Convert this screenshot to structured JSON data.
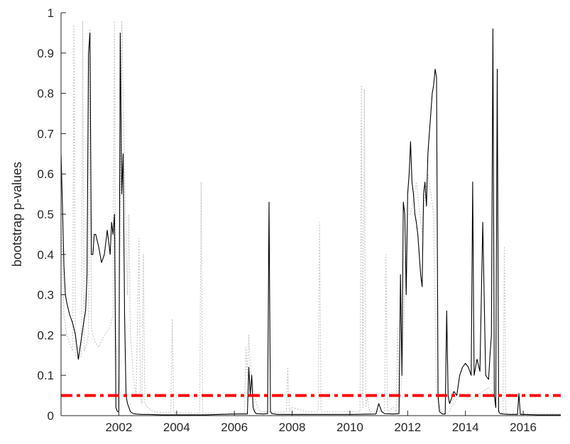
{
  "chart_data": {
    "type": "line",
    "title": "",
    "xlabel": "",
    "ylabel": "bootstrap p-values",
    "xlim": [
      2000.0,
      2017.3
    ],
    "ylim": [
      0,
      1
    ],
    "x_ticks": [
      2002,
      2004,
      2006,
      2008,
      2010,
      2012,
      2014,
      2016
    ],
    "x_tick_labels": [
      "2002",
      "2004",
      "2006",
      "2008",
      "2010",
      "2012",
      "2014",
      "2016"
    ],
    "y_ticks": [
      0,
      0.1,
      0.2,
      0.3,
      0.4,
      0.5,
      0.6,
      0.7,
      0.8,
      0.9,
      1
    ],
    "y_tick_labels": [
      "0",
      "0.1",
      "0.2",
      "0.3",
      "0.4",
      "0.5",
      "0.6",
      "0.7",
      "0.8",
      "0.9",
      "1"
    ],
    "grid": false,
    "legend": "none",
    "threshold": 0.05,
    "series": [
      {
        "color": "#000000",
        "style": "solid",
        "x": [
          2000.0,
          2000.05,
          2000.1,
          2000.15,
          2000.2,
          2000.3,
          2000.4,
          2000.5,
          2000.55,
          2000.6,
          2000.7,
          2000.8,
          2000.85,
          2000.9,
          2000.95,
          2001.0,
          2001.05,
          2001.1,
          2001.15,
          2001.2,
          2001.3,
          2001.4,
          2001.5,
          2001.6,
          2001.7,
          2001.75,
          2001.8,
          2001.85,
          2001.9,
          2001.95,
          2002.0,
          2002.05,
          2002.1,
          2002.15,
          2002.2,
          2002.25,
          2002.3,
          2002.35,
          2002.4,
          2002.5,
          2002.6,
          2002.8,
          2003.0,
          2003.5,
          2004.0,
          2005.0,
          2006.0,
          2006.45,
          2006.5,
          2006.55,
          2006.6,
          2006.65,
          2006.7,
          2006.75,
          2006.8,
          2007.0,
          2007.15,
          2007.2,
          2007.25,
          2007.3,
          2007.5,
          2008.0,
          2009.0,
          2010.0,
          2010.9,
          2011.0,
          2011.1,
          2011.2,
          2011.5,
          2011.7,
          2011.75,
          2011.8,
          2011.85,
          2011.9,
          2011.95,
          2012.0,
          2012.05,
          2012.1,
          2012.15,
          2012.2,
          2012.25,
          2012.3,
          2012.35,
          2012.4,
          2012.45,
          2012.5,
          2012.55,
          2012.6,
          2012.65,
          2012.7,
          2012.75,
          2012.8,
          2012.85,
          2012.9,
          2012.95,
          2013.0,
          2013.05,
          2013.1,
          2013.2,
          2013.3,
          2013.35,
          2013.4,
          2013.45,
          2013.5,
          2013.6,
          2013.7,
          2013.8,
          2013.9,
          2014.0,
          2014.1,
          2014.2,
          2014.25,
          2014.3,
          2014.4,
          2014.5,
          2014.6,
          2014.7,
          2014.8,
          2014.85,
          2014.9,
          2014.95,
          2015.0,
          2015.05,
          2015.1,
          2015.15,
          2015.2,
          2015.3,
          2015.5,
          2015.8,
          2015.85,
          2015.9,
          2016.0,
          2016.5,
          2017.3
        ],
        "y": [
          0.65,
          0.52,
          0.37,
          0.3,
          0.28,
          0.25,
          0.23,
          0.2,
          0.17,
          0.14,
          0.19,
          0.24,
          0.26,
          0.35,
          0.9,
          0.95,
          0.4,
          0.4,
          0.45,
          0.45,
          0.42,
          0.38,
          0.4,
          0.46,
          0.4,
          0.48,
          0.45,
          0.5,
          0.02,
          0.01,
          0.01,
          0.95,
          0.55,
          0.65,
          0.25,
          0.05,
          0.03,
          0.02,
          0.01,
          0.005,
          0.004,
          0.003,
          0.003,
          0.002,
          0.002,
          0.002,
          0.004,
          0.004,
          0.12,
          0.05,
          0.1,
          0.02,
          0.01,
          0.005,
          0.005,
          0.004,
          0.005,
          0.53,
          0.01,
          0.005,
          0.003,
          0.003,
          0.003,
          0.003,
          0.004,
          0.03,
          0.01,
          0.005,
          0.004,
          0.005,
          0.35,
          0.1,
          0.53,
          0.5,
          0.3,
          0.55,
          0.6,
          0.68,
          0.58,
          0.55,
          0.5,
          0.48,
          0.45,
          0.4,
          0.35,
          0.32,
          0.55,
          0.58,
          0.52,
          0.65,
          0.7,
          0.75,
          0.8,
          0.82,
          0.86,
          0.84,
          0.05,
          0.01,
          0.004,
          0.004,
          0.26,
          0.05,
          0.03,
          0.04,
          0.06,
          0.05,
          0.1,
          0.12,
          0.13,
          0.12,
          0.1,
          0.58,
          0.1,
          0.14,
          0.11,
          0.48,
          0.1,
          0.09,
          0.15,
          0.2,
          0.96,
          0.05,
          0.02,
          0.86,
          0.01,
          0.005,
          0.004,
          0.003,
          0.003,
          0.055,
          0.003,
          0.003,
          0.002,
          0.002
        ]
      },
      {
        "color": "#c8c8c8",
        "style": "dotted",
        "x": [
          2000.0,
          2000.1,
          2000.2,
          2000.3,
          2000.4,
          2000.45,
          2000.5,
          2000.6,
          2000.7,
          2000.75,
          2000.8,
          2000.9,
          2000.95,
          2001.0,
          2001.05,
          2001.1,
          2001.2,
          2001.3,
          2001.5,
          2001.7,
          2001.8,
          2001.85,
          2001.9,
          2001.95,
          2002.0,
          2002.1,
          2002.2,
          2002.3,
          2002.35,
          2002.4,
          2002.5,
          2002.6,
          2002.7,
          2002.75,
          2002.8,
          2002.85,
          2002.9,
          2003.0,
          2003.2,
          2003.5,
          2003.8,
          2003.85,
          2003.9,
          2004.0,
          2004.5,
          2004.8,
          2004.85,
          2004.9,
          2005.0,
          2005.5,
          2006.0,
          2006.35,
          2006.4,
          2006.45,
          2006.5,
          2006.55,
          2006.6,
          2006.7,
          2006.8,
          2006.9,
          2007.0,
          2007.5,
          2007.8,
          2007.85,
          2007.9,
          2008.0,
          2008.5,
          2008.9,
          2008.95,
          2009.0,
          2009.5,
          2010.0,
          2010.35,
          2010.4,
          2010.45,
          2010.5,
          2010.55,
          2010.6,
          2010.65,
          2010.7,
          2011.0,
          2011.2,
          2011.25,
          2011.3,
          2011.5,
          2011.6,
          2011.65,
          2011.7,
          2011.8,
          2011.9,
          2012.0,
          2012.1,
          2012.3,
          2012.5,
          2012.6,
          2012.7,
          2012.8,
          2012.9,
          2013.0,
          2013.1,
          2013.2,
          2013.3,
          2013.4,
          2013.5,
          2013.6,
          2013.8,
          2014.0,
          2014.2,
          2014.4,
          2014.6,
          2014.8,
          2015.0,
          2015.1,
          2015.2,
          2015.3,
          2015.35,
          2015.4,
          2015.45,
          2015.5,
          2016.0,
          2017.3
        ],
        "y": [
          0.5,
          0.25,
          0.2,
          0.18,
          0.16,
          0.97,
          0.15,
          0.14,
          0.15,
          0.98,
          0.16,
          0.18,
          0.2,
          0.96,
          0.22,
          0.2,
          0.18,
          0.17,
          0.2,
          0.22,
          0.25,
          0.98,
          0.2,
          0.1,
          0.05,
          0.98,
          0.6,
          0.3,
          0.5,
          0.2,
          0.1,
          0.05,
          0.44,
          0.05,
          0.03,
          0.4,
          0.03,
          0.02,
          0.01,
          0.008,
          0.008,
          0.24,
          0.008,
          0.008,
          0.006,
          0.006,
          0.58,
          0.006,
          0.006,
          0.005,
          0.005,
          0.005,
          0.17,
          0.1,
          0.2,
          0.12,
          0.1,
          0.05,
          0.02,
          0.01,
          0.01,
          0.008,
          0.01,
          0.12,
          0.01,
          0.02,
          0.01,
          0.01,
          0.48,
          0.01,
          0.01,
          0.01,
          0.01,
          0.82,
          0.02,
          0.81,
          0.02,
          0.05,
          0.02,
          0.01,
          0.01,
          0.01,
          0.4,
          0.01,
          0.02,
          0.01,
          0.22,
          0.01,
          0.1,
          0.3,
          0.5,
          0.5,
          0.58,
          0.45,
          0.55,
          0.6,
          0.55,
          0.5,
          0.05,
          0.02,
          0.01,
          0.005,
          0.005,
          0.02,
          0.03,
          0.05,
          0.05,
          0.04,
          0.05,
          0.06,
          0.07,
          0.05,
          0.02,
          0.01,
          0.005,
          0.42,
          0.005,
          0.005,
          0.005,
          0.005,
          0.005
        ]
      }
    ]
  }
}
